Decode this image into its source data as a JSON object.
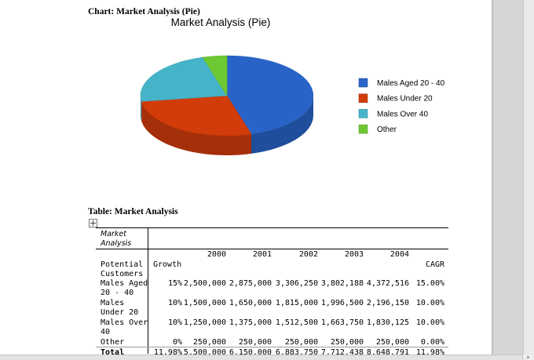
{
  "chart_caption": "Chart: Market Analysis (Pie)",
  "table_caption": "Table: Market Analysis",
  "chart_data": {
    "type": "pie",
    "title": "Market Analysis (Pie)",
    "categories": [
      "Males Aged 20 - 40",
      "Males Under 20",
      "Males Over 40",
      "Other"
    ],
    "values": [
      2500000,
      1500000,
      1250000,
      250000
    ],
    "colors": [
      "#2864c8",
      "#d23c0a",
      "#46b4c8",
      "#6ec832"
    ],
    "legend_position": "right",
    "style": "3d"
  },
  "table": {
    "title_line1": "Market",
    "title_line2": "Analysis",
    "years": [
      "2000",
      "2001",
      "2002",
      "2003",
      "2004"
    ],
    "potential_line1": "Potential",
    "potential_line2": "Customers",
    "growth_header": "Growth",
    "cagr_header": "CAGR",
    "rows": [
      {
        "label1": "Males Aged",
        "label2": "20 - 40",
        "growth": "15%",
        "values": [
          "2,500,000",
          "2,875,000",
          "3,306,250",
          "3,802,188",
          "4,372,516"
        ],
        "cagr": "15.00%"
      },
      {
        "label1": "Males",
        "label2": "Under 20",
        "growth": "10%",
        "values": [
          "1,500,000",
          "1,650,000",
          "1,815,000",
          "1,996,500",
          "2,196,150"
        ],
        "cagr": "10.00%"
      },
      {
        "label1": "Males Over",
        "label2": "40",
        "growth": "10%",
        "values": [
          "1,250,000",
          "1,375,000",
          "1,512,500",
          "1,663,750",
          "1,830,125"
        ],
        "cagr": "10.00%"
      },
      {
        "label1": "Other",
        "label2": "",
        "growth": "0%",
        "values": [
          "250,000",
          "250,000",
          "250,000",
          "250,000",
          "250,000"
        ],
        "cagr": "0.00%"
      }
    ],
    "total": {
      "label": "Total",
      "growth": "11.98%",
      "values": [
        "5,500,000",
        "6,150,000",
        "6,883,750",
        "7,712,438",
        "8,648,791"
      ],
      "cagr": "11.98%"
    }
  }
}
